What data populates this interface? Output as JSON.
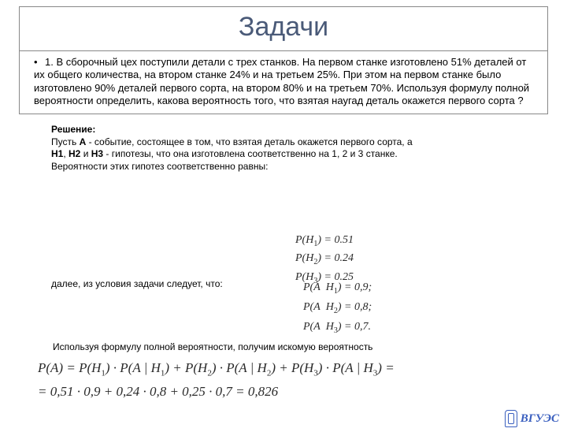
{
  "title": "Задачи",
  "problem": {
    "bullet": "•",
    "text": "1.  В сборочный цех поступили детали с трех станков. На первом станке изготовлено 51% деталей от их общего количества, на втором станке 24% и на третьем 25%. При этом на первом станке было изготовлено 90% деталей первого сорта, на втором 80% и на третьем 70%. Используя формулу полной вероятности определить, какова вероятность того, что взятая наугад деталь окажется первого сорта ?"
  },
  "solution": {
    "heading": "Решение:",
    "line1a": "  Пусть ",
    "A": "А",
    "line1b": " - событие, состоящее в том, что взятая деталь окажется первого сорта, а ",
    "H1": "Н1",
    "sep1": ", ",
    "H2": "Н2",
    "sep2": " и ",
    "H3": "Н3",
    "line1c": " - гипотезы, что она изготовлена соответственно на 1, 2 и 3 станке.",
    "line2": "  Вероятности этих гипотез соответственно равны:"
  },
  "priors": {
    "p1": "P(H₁) = 0.51",
    "p2": "P(H₂) = 0.24",
    "p3": "P(H₃) = 0.25",
    "v1": "0.51",
    "v2": "0.24",
    "v3": "0.25"
  },
  "follow": "далее, из условия задачи следует, что:",
  "cond": {
    "v1": "0,9;",
    "v2": "0,8;",
    "v3": "0,7."
  },
  "full_prob_text": "Используя формулу полной вероятности, получим искомую вероятность",
  "formula": {
    "line1_pre": "P(A) = P(H",
    "line1": ") · P(A | H",
    "line2": "= 0,51 · 0,9 + 0,24 · 0,8 + 0,25 · 0,7 = 0,826"
  },
  "logo": "ВГУЭС",
  "colors": {
    "title": "#4a5a78",
    "logo": "#3a5fbf",
    "border": "#888888"
  }
}
